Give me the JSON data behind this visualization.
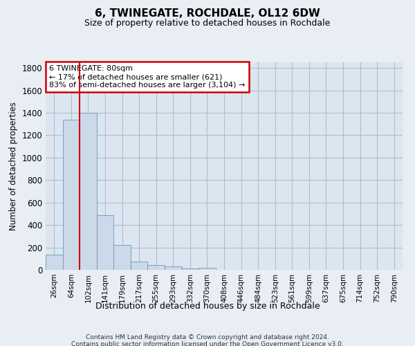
{
  "title": "6, TWINEGATE, ROCHDALE, OL12 6DW",
  "subtitle": "Size of property relative to detached houses in Rochdale",
  "xlabel": "Distribution of detached houses by size in Rochdale",
  "ylabel": "Number of detached properties",
  "bar_values": [
    135,
    1340,
    1400,
    490,
    225,
    75,
    45,
    28,
    15,
    20,
    0,
    0,
    0,
    0,
    0,
    0,
    0,
    0,
    0,
    0,
    0
  ],
  "categories": [
    "26sqm",
    "64sqm",
    "102sqm",
    "141sqm",
    "179sqm",
    "217sqm",
    "255sqm",
    "293sqm",
    "332sqm",
    "370sqm",
    "408sqm",
    "446sqm",
    "484sqm",
    "523sqm",
    "561sqm",
    "599sqm",
    "637sqm",
    "675sqm",
    "714sqm",
    "752sqm",
    "790sqm"
  ],
  "bar_color": "#ccd9e8",
  "bar_edge_color": "#6699bb",
  "vline_color": "#cc0000",
  "vline_x": 1.5,
  "annotation_text": "6 TWINEGATE: 80sqm\n← 17% of detached houses are smaller (621)\n83% of semi-detached houses are larger (3,104) →",
  "annotation_box_color": "#cc0000",
  "ylim": [
    0,
    1850
  ],
  "yticks": [
    0,
    200,
    400,
    600,
    800,
    1000,
    1200,
    1400,
    1600,
    1800
  ],
  "footer_text": "Contains HM Land Registry data © Crown copyright and database right 2024.\nContains public sector information licensed under the Open Government Licence v3.0.",
  "bg_color": "#e8eef4",
  "plot_bg_color": "#dce6f0",
  "grid_color": "#b0bec8"
}
